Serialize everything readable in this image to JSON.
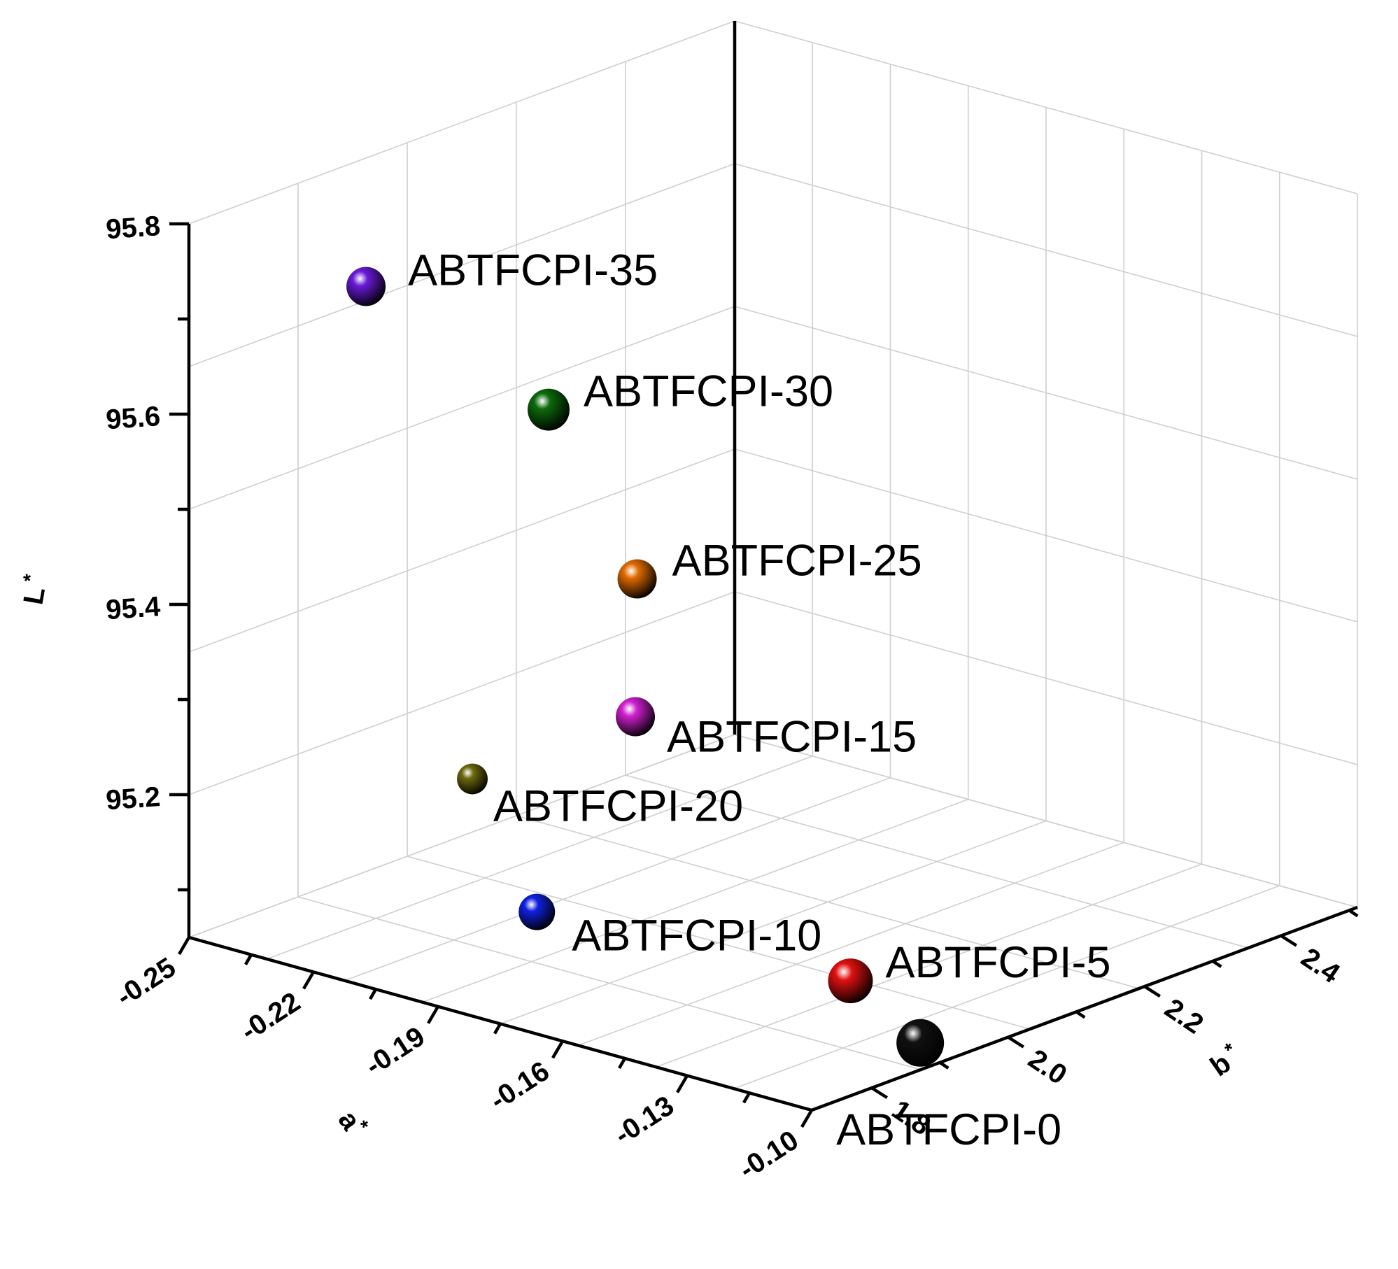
{
  "chart_data": {
    "type": "scatter",
    "dimensions": 3,
    "grid": true,
    "axes": {
      "a": {
        "label": "a",
        "label_superscript": "*",
        "ticks": [
          "-0.25",
          "-0.22",
          "-0.19",
          "-0.16",
          "-0.13",
          "-0.10"
        ],
        "range": [
          -0.25,
          -0.1
        ]
      },
      "b": {
        "label": "b",
        "label_superscript": "*",
        "ticks": [
          "1.8",
          "2.0",
          "2.2",
          "2.4"
        ],
        "range": [
          1.7,
          2.5
        ]
      },
      "L": {
        "label": "L",
        "label_superscript": "*",
        "ticks": [
          "95.2",
          "95.4",
          "95.6",
          "95.8"
        ],
        "range": [
          95.05,
          95.8
        ]
      }
    },
    "series": [
      {
        "name": "ABTFCPI-0",
        "a": -0.11,
        "b": 2.1,
        "L": 95.05,
        "color": "#111111"
      },
      {
        "name": "ABTFCPI-5",
        "a": -0.125,
        "b": 2.08,
        "L": 95.1,
        "color": "#e01010"
      },
      {
        "name": "ABTFCPI-10",
        "a": -0.215,
        "b": 2.24,
        "L": 95.04,
        "color": "#1020e0"
      },
      {
        "name": "ABTFCPI-15",
        "a": -0.175,
        "b": 2.06,
        "L": 95.32,
        "color": "#d020d0"
      },
      {
        "name": "ABTFCPI-20",
        "a": -0.245,
        "b": 2.4,
        "L": 95.12,
        "color": "#6e6a10"
      },
      {
        "name": "ABTFCPI-25",
        "a": -0.18,
        "b": 2.12,
        "L": 95.45,
        "color": "#e06a00"
      },
      {
        "name": "ABTFCPI-30",
        "a": -0.195,
        "b": 2.05,
        "L": 95.62,
        "color": "#0d6a0d"
      },
      {
        "name": "ABTFCPI-35",
        "a": -0.22,
        "b": 1.84,
        "L": 95.75,
        "color": "#6a1ad8"
      }
    ]
  }
}
